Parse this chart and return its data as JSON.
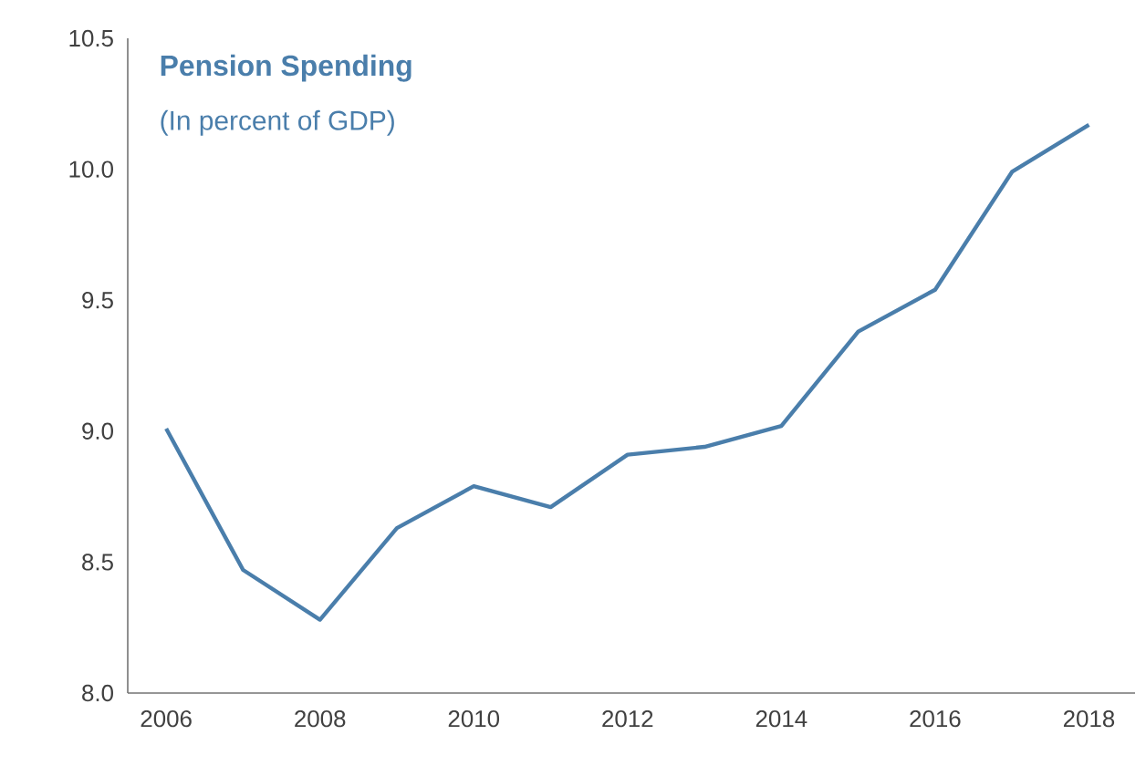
{
  "chart_data": {
    "type": "line",
    "title": "Pension Spending",
    "subtitle": "(In percent of GDP)",
    "x": [
      2006,
      2007,
      2008,
      2009,
      2010,
      2011,
      2012,
      2013,
      2014,
      2015,
      2016,
      2017,
      2018
    ],
    "series": [
      {
        "color": "#4a7eab",
        "values": [
          9.01,
          8.47,
          8.28,
          8.63,
          8.79,
          8.71,
          8.91,
          8.94,
          9.02,
          9.38,
          9.54,
          9.99,
          10.17
        ]
      }
    ],
    "xlim": [
      2005.5,
      2018.6
    ],
    "ylim": [
      8.0,
      10.5
    ],
    "xticks": [
      2006,
      2008,
      2010,
      2012,
      2014,
      2016,
      2018
    ],
    "yticks": [
      {
        "value": 8.0,
        "label": "8.0"
      },
      {
        "value": 8.5,
        "label": "8.5"
      },
      {
        "value": 9.0,
        "label": "9.0"
      },
      {
        "value": 9.5,
        "label": "9.5"
      },
      {
        "value": 10.0,
        "label": "10.0"
      },
      {
        "value": 10.5,
        "label": "10.5"
      }
    ]
  }
}
